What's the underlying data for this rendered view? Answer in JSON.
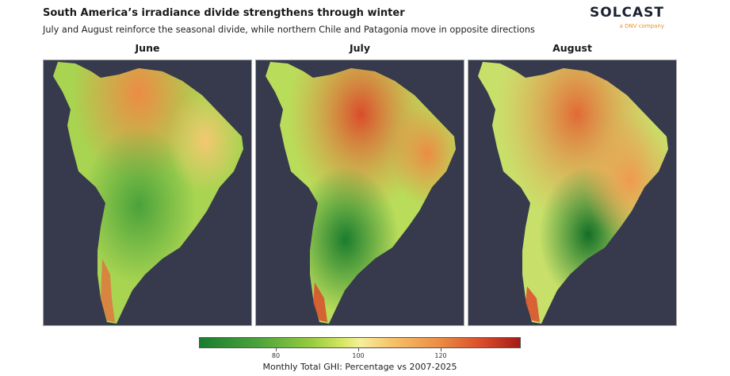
{
  "header": {
    "title": "South America’s irradiance divide strengthens through winter",
    "subtitle": "July and August reinforce the seasonal divide, while northern Chile and Patagonia move in opposite directions"
  },
  "logo": {
    "name": "SOLCAST",
    "tagline": "a DNV company",
    "accent": "#e5922a"
  },
  "panels": [
    {
      "label": "June"
    },
    {
      "label": "July"
    },
    {
      "label": "August"
    }
  ],
  "colorbar": {
    "label": "Monthly Total GHI: Percentage vs 2007-2025",
    "ticks": [
      "80",
      "100",
      "120"
    ],
    "low_color": "#1a7d2e",
    "mid_color": "#f6ef9c",
    "high_color": "#a51b15"
  },
  "colors": {
    "ocean": "#363a4c"
  }
}
